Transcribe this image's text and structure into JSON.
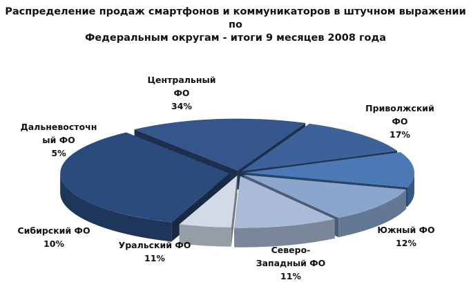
{
  "chart_data": {
    "type": "pie",
    "title_lines": [
      "Распределение продаж смартфонов и коммуникаторов в штучном выражении по",
      "Федеральным округам  - итоги 9 месяцев 2008 года"
    ],
    "slices": [
      {
        "name_lines": [
          "Центральный",
          "ФО"
        ],
        "value": 34,
        "label": "34%",
        "color": "#2b4b7e"
      },
      {
        "name_lines": [
          "Приволжский",
          "ФО"
        ],
        "value": 17,
        "label": "17%",
        "color": "#34568a"
      },
      {
        "name_lines": [
          "Южный ФО"
        ],
        "value": 12,
        "label": "12%",
        "color": "#3d6299"
      },
      {
        "name_lines": [
          "Северо-",
          "Западный ФО"
        ],
        "value": 11,
        "label": "11%",
        "color": "#4a79b6"
      },
      {
        "name_lines": [
          "Уральский ФО"
        ],
        "value": 11,
        "label": "11%",
        "color": "#8aa6cd"
      },
      {
        "name_lines": [
          "Сибирский ФО"
        ],
        "value": 10,
        "label": "10%",
        "color": "#a9bbd6"
      },
      {
        "name_lines": [
          "Дальневосточн",
          "ый ФО"
        ],
        "value": 5,
        "label": "5%",
        "color": "#d2dae8"
      }
    ]
  }
}
